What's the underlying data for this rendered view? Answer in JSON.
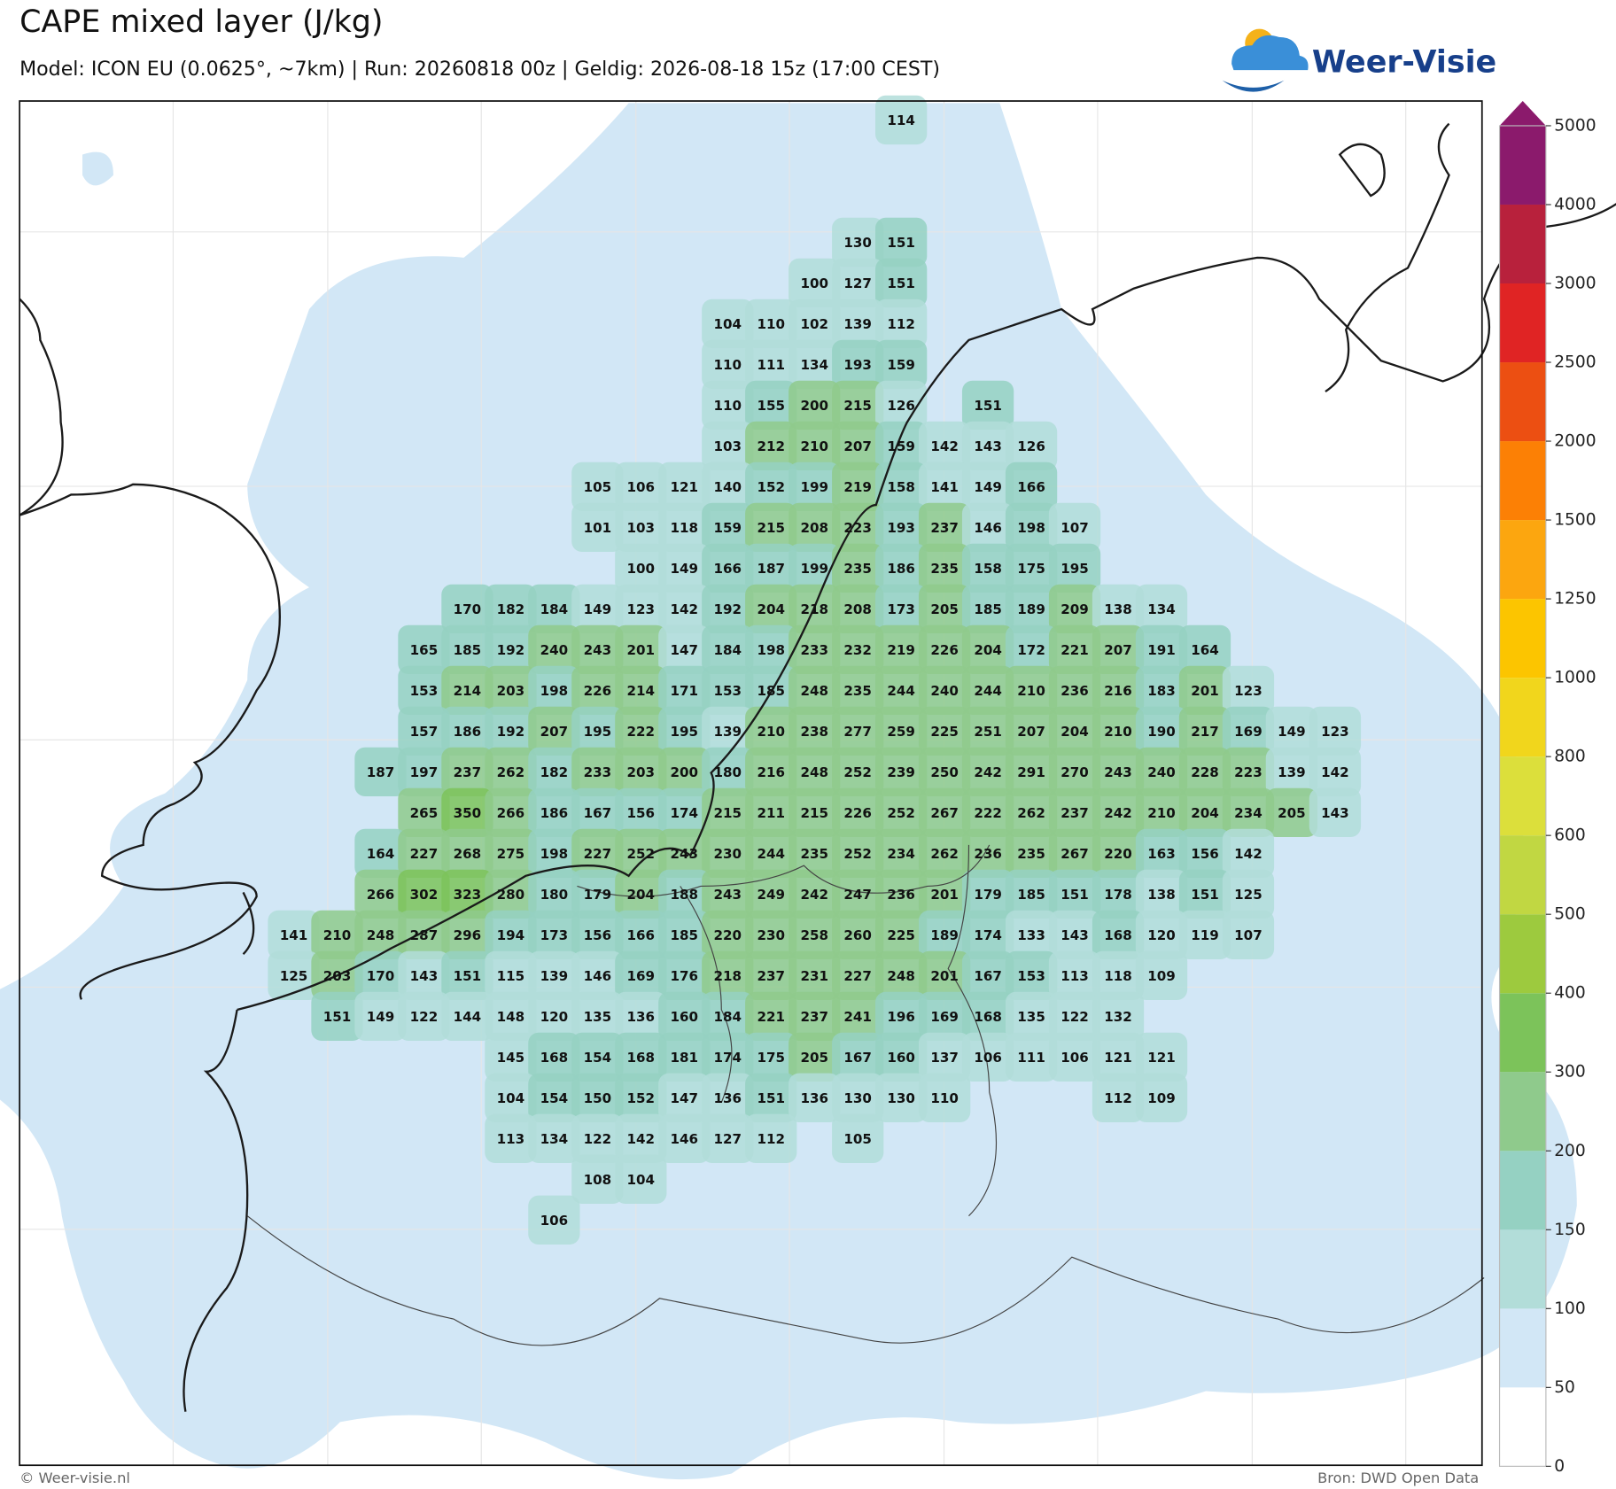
{
  "header": {
    "title": "CAPE mixed layer (J/kg)",
    "subtitle": "Model: ICON EU (0.0625°, ~7km)  |  Run: 20260818 00z  |  Geldig: 2026-08-18 15z (17:00 CEST)",
    "logo": "Weer-Visie"
  },
  "map": {
    "rows": [
      [
        null,
        null,
        null,
        null,
        null,
        null,
        null,
        null,
        null,
        null,
        null,
        null,
        null,
        null,
        114,
        null,
        null,
        null,
        null,
        null,
        null,
        null,
        null,
        null,
        null
      ],
      [
        null,
        null,
        null,
        null,
        null,
        null,
        null,
        null,
        null,
        null,
        null,
        null,
        null,
        null,
        null,
        null,
        null,
        null,
        null,
        null,
        null,
        null,
        null,
        null,
        null
      ],
      [
        null,
        null,
        null,
        null,
        null,
        null,
        null,
        null,
        null,
        null,
        null,
        null,
        null,
        null,
        null,
        null,
        null,
        null,
        null,
        null,
        null,
        null,
        null,
        null,
        null
      ],
      [
        null,
        null,
        null,
        null,
        null,
        null,
        null,
        null,
        null,
        null,
        null,
        null,
        null,
        130,
        151,
        null,
        null,
        null,
        null,
        null,
        null,
        null,
        null,
        null,
        null
      ],
      [
        null,
        null,
        null,
        null,
        null,
        null,
        null,
        null,
        null,
        null,
        null,
        null,
        100,
        127,
        151,
        null,
        null,
        null,
        null,
        null,
        null,
        null,
        null,
        null,
        null
      ],
      [
        null,
        null,
        null,
        null,
        null,
        null,
        null,
        null,
        null,
        null,
        104,
        110,
        102,
        139,
        112,
        null,
        null,
        null,
        null,
        null,
        null,
        null,
        null,
        null,
        null
      ],
      [
        null,
        null,
        null,
        null,
        null,
        null,
        null,
        null,
        null,
        null,
        110,
        111,
        134,
        193,
        159,
        null,
        null,
        null,
        null,
        null,
        null,
        null,
        null,
        null,
        null
      ],
      [
        null,
        null,
        null,
        null,
        null,
        null,
        null,
        null,
        null,
        null,
        110,
        155,
        200,
        215,
        126,
        null,
        151,
        null,
        null,
        null,
        null,
        null,
        null,
        null,
        null
      ],
      [
        null,
        null,
        null,
        null,
        null,
        null,
        null,
        null,
        null,
        null,
        103,
        212,
        210,
        207,
        159,
        142,
        143,
        126,
        null,
        null,
        null,
        null,
        null,
        null,
        null
      ],
      [
        null,
        null,
        null,
        null,
        null,
        null,
        null,
        105,
        106,
        121,
        140,
        152,
        199,
        219,
        158,
        141,
        149,
        166,
        null,
        null,
        null,
        null,
        null,
        null,
        null
      ],
      [
        null,
        null,
        null,
        null,
        null,
        null,
        null,
        101,
        103,
        118,
        159,
        215,
        208,
        223,
        193,
        237,
        146,
        198,
        107,
        null,
        null,
        null,
        null,
        null,
        null
      ],
      [
        null,
        null,
        null,
        null,
        null,
        null,
        null,
        null,
        100,
        149,
        166,
        187,
        199,
        235,
        186,
        235,
        158,
        175,
        195,
        null,
        null,
        null,
        null,
        null,
        null
      ],
      [
        null,
        null,
        null,
        null,
        170,
        182,
        184,
        149,
        123,
        142,
        192,
        204,
        218,
        208,
        173,
        205,
        185,
        189,
        209,
        138,
        134,
        null,
        null,
        null,
        null
      ],
      [
        null,
        null,
        null,
        165,
        185,
        192,
        240,
        243,
        201,
        147,
        184,
        198,
        233,
        232,
        219,
        226,
        204,
        172,
        221,
        207,
        191,
        164,
        null,
        null,
        null
      ],
      [
        null,
        null,
        null,
        153,
        214,
        203,
        198,
        226,
        214,
        171,
        153,
        185,
        248,
        235,
        244,
        240,
        244,
        210,
        236,
        216,
        183,
        201,
        123,
        null,
        null
      ],
      [
        null,
        null,
        null,
        157,
        186,
        192,
        207,
        195,
        222,
        195,
        139,
        210,
        238,
        277,
        259,
        225,
        251,
        207,
        204,
        210,
        190,
        217,
        169,
        149,
        123
      ],
      [
        null,
        null,
        187,
        197,
        237,
        262,
        182,
        233,
        203,
        200,
        180,
        216,
        248,
        252,
        239,
        250,
        242,
        291,
        270,
        243,
        240,
        228,
        223,
        139,
        142
      ],
      [
        null,
        null,
        null,
        265,
        350,
        266,
        186,
        167,
        156,
        174,
        215,
        211,
        215,
        226,
        252,
        267,
        222,
        262,
        237,
        242,
        210,
        204,
        234,
        205,
        143
      ],
      [
        null,
        null,
        164,
        227,
        268,
        275,
        198,
        227,
        252,
        243,
        230,
        244,
        235,
        252,
        234,
        262,
        236,
        235,
        267,
        220,
        163,
        156,
        142,
        null,
        null
      ],
      [
        null,
        null,
        266,
        302,
        323,
        280,
        180,
        179,
        204,
        188,
        243,
        249,
        242,
        247,
        236,
        201,
        179,
        185,
        151,
        178,
        138,
        151,
        125,
        null,
        null
      ],
      [
        141,
        210,
        248,
        287,
        296,
        194,
        173,
        156,
        166,
        185,
        220,
        230,
        258,
        260,
        225,
        189,
        174,
        133,
        143,
        168,
        120,
        119,
        107,
        null,
        null
      ],
      [
        125,
        203,
        170,
        143,
        151,
        115,
        139,
        146,
        169,
        176,
        218,
        237,
        231,
        227,
        248,
        201,
        167,
        153,
        113,
        118,
        109,
        null,
        null,
        null,
        null
      ],
      [
        null,
        151,
        149,
        122,
        144,
        148,
        120,
        135,
        136,
        160,
        184,
        221,
        237,
        241,
        196,
        169,
        168,
        135,
        122,
        132,
        null,
        null,
        null,
        null,
        null
      ],
      [
        null,
        null,
        null,
        null,
        null,
        145,
        168,
        154,
        168,
        181,
        174,
        175,
        205,
        167,
        160,
        137,
        106,
        111,
        106,
        121,
        121,
        null,
        null,
        null,
        null
      ],
      [
        null,
        null,
        null,
        null,
        null,
        104,
        154,
        150,
        152,
        147,
        136,
        151,
        136,
        130,
        130,
        110,
        null,
        null,
        null,
        112,
        109,
        null,
        null,
        null,
        null
      ],
      [
        null,
        null,
        null,
        null,
        null,
        113,
        134,
        122,
        142,
        146,
        127,
        112,
        null,
        105,
        null,
        null,
        null,
        null,
        null,
        null,
        null,
        null,
        null,
        null,
        null
      ],
      [
        null,
        null,
        null,
        null,
        null,
        null,
        null,
        108,
        104,
        null,
        null,
        null,
        null,
        null,
        null,
        null,
        null,
        null,
        null,
        null,
        null,
        null,
        null,
        null,
        null
      ],
      [
        null,
        null,
        null,
        null,
        null,
        null,
        106,
        null,
        null,
        null,
        null,
        null,
        null,
        null,
        null,
        null,
        null,
        null,
        null,
        null,
        null,
        null,
        null,
        null,
        null
      ]
    ]
  },
  "colorbar": {
    "ticks": [
      0,
      50,
      100,
      150,
      200,
      300,
      400,
      500,
      600,
      800,
      1000,
      1250,
      1500,
      2000,
      2500,
      3000,
      4000,
      5000
    ],
    "colors": [
      "#ffffff",
      "#d2e7f6",
      "#b2ddd9",
      "#95d1c2",
      "#8fca8c",
      "#7cc35a",
      "#9dca3e",
      "#c1d742",
      "#dcdf3b",
      "#f1d61c",
      "#fcc500",
      "#fca60f",
      "#fc8005",
      "#ec4f12",
      "#e02424",
      "#b8213c",
      "#8b1a6c"
    ]
  },
  "footer": {
    "left": "© Weer-visie.nl",
    "right": "Bron: DWD Open Data"
  }
}
